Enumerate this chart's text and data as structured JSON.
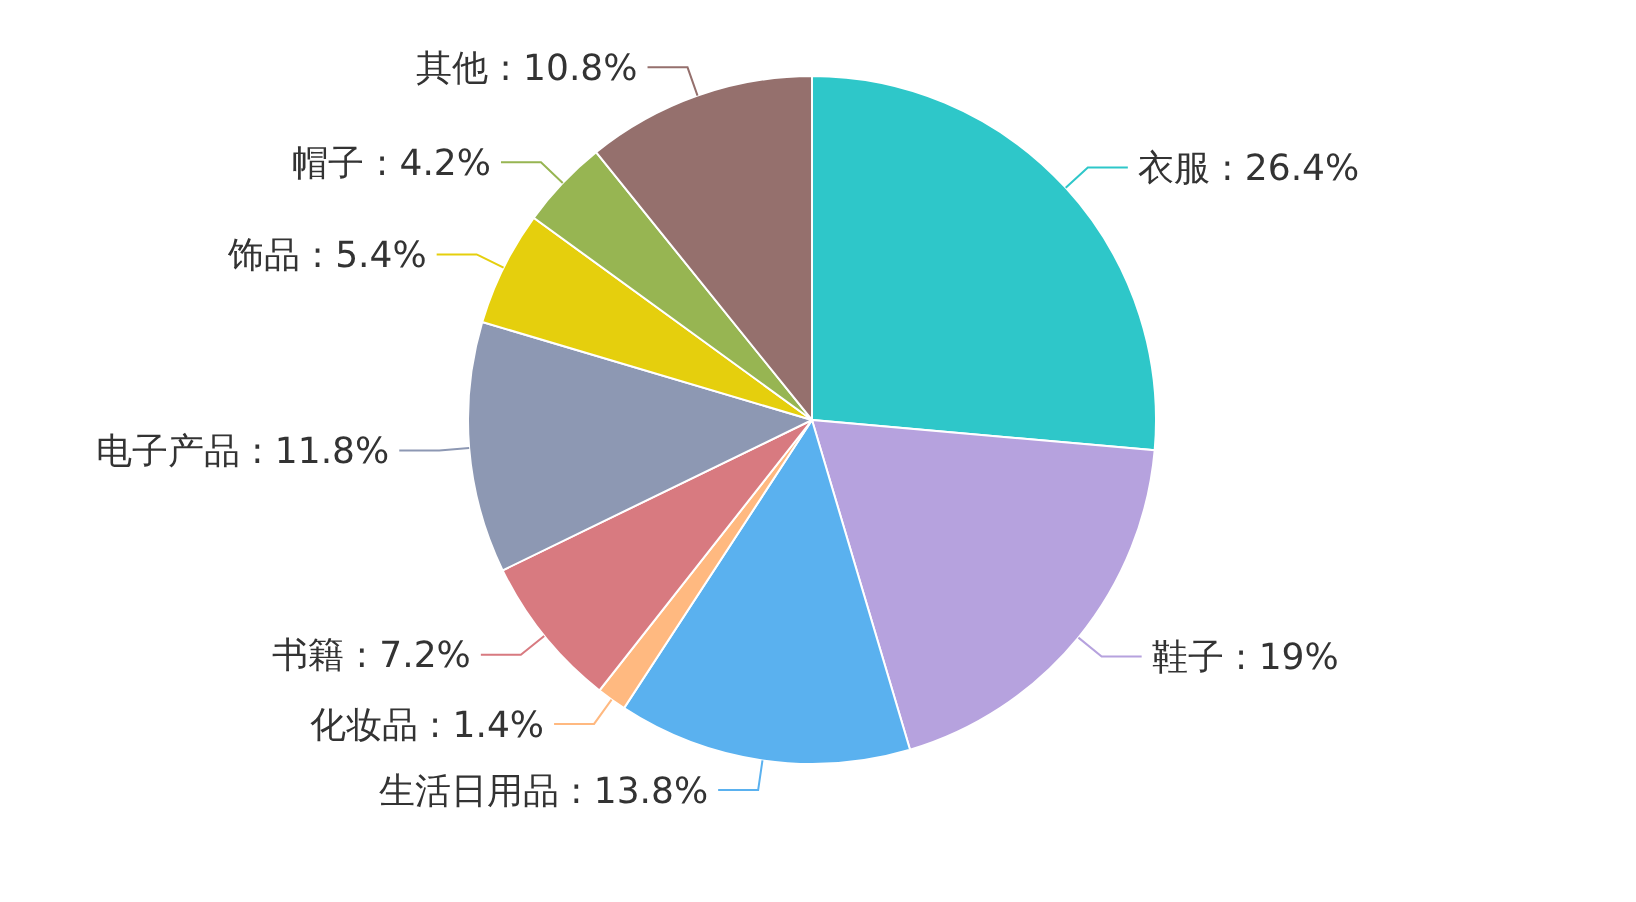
{
  "chart_data": {
    "type": "pie",
    "categories": [
      "衣服",
      "鞋子",
      "生活日用品",
      "化妆品",
      "书籍",
      "电子产品",
      "饰品",
      "帽子",
      "其他"
    ],
    "values": [
      26.4,
      19,
      13.8,
      1.4,
      7.2,
      11.8,
      5.4,
      4.2,
      10.8
    ],
    "value_labels": [
      "26.4%",
      "19%",
      "13.8%",
      "1.4%",
      "7.2%",
      "11.8%",
      "5.4%",
      "4.2%",
      "10.8%"
    ],
    "colors": [
      "#2ec7c9",
      "#b6a2de",
      "#5ab1ef",
      "#ffb980",
      "#d87a80",
      "#8d98b3",
      "#e5cf0d",
      "#97b552",
      "#95706d"
    ]
  }
}
